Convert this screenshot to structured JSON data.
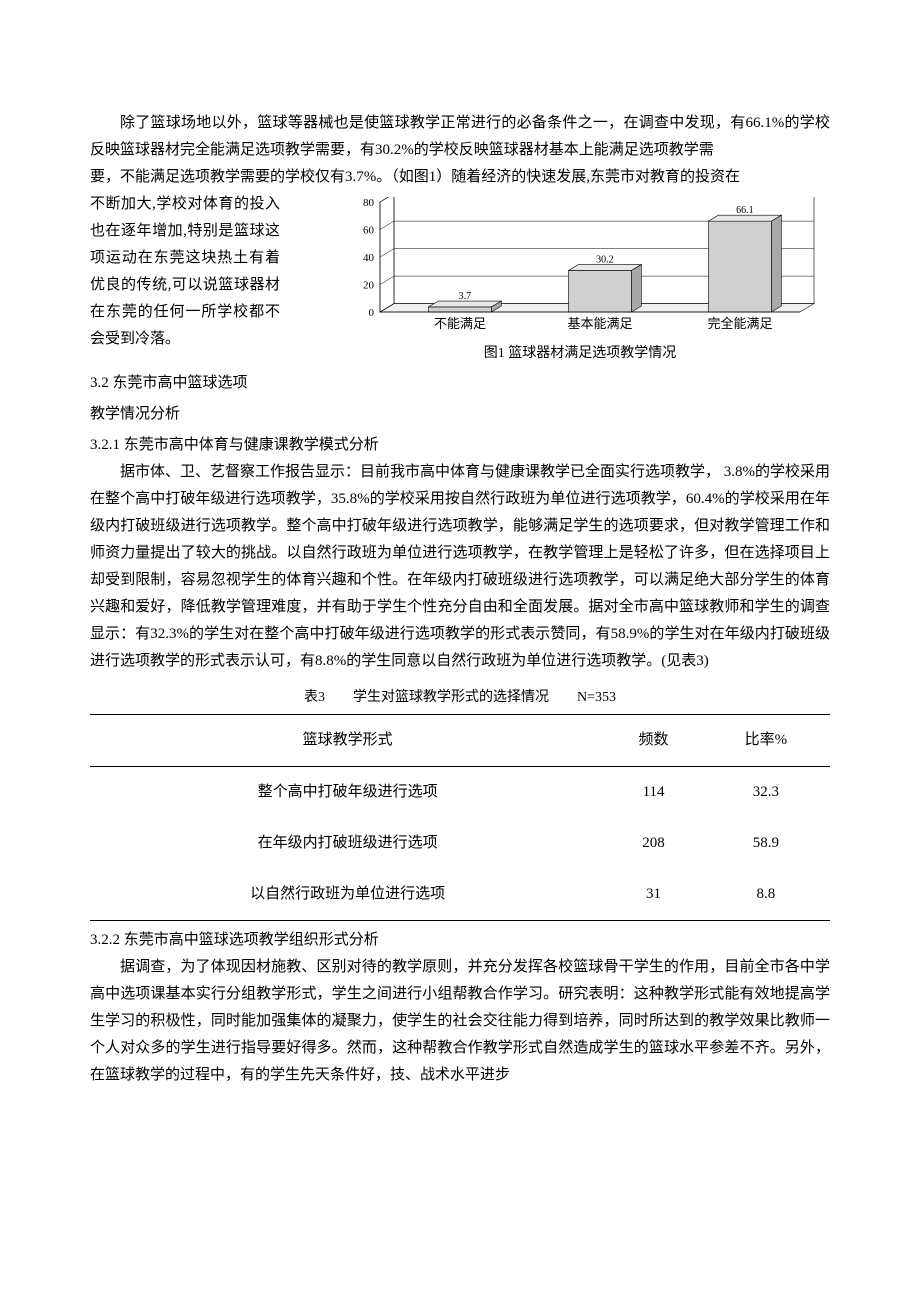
{
  "para1": "除了篮球场地以外，篮球等器械也是使篮球教学正常进行的必备条件之一，在调查中发现，有66.1%的学校反映篮球器材完全能满足选项教学需要，有30.2%的学校反映篮球器材基本上能满足选项教学需",
  "para2": "要，不能满足选项教学需要的学校仅有3.7%。（如图1）随着经济的快速发展,东莞市对教育的投资在",
  "left_text": "不断加大,学校对体育的投入也在逐年增加,特别是篮球这项运动在东莞这块热土有着优良的传统,可以说篮球器材在东莞的任何一所学校都不会受到冷落。",
  "chart": {
    "type": "bar",
    "categories": [
      "不能满足",
      "基本能满足",
      "完全能满足"
    ],
    "values": [
      3.7,
      30.2,
      66.1
    ],
    "value_labels": [
      "3.7",
      "30.2",
      "66.1"
    ],
    "ylim": [
      0,
      80
    ],
    "yticks": [
      0,
      20,
      40,
      60,
      80
    ],
    "bar_fill": "#d0d0d0",
    "bar_top": "#e8e8e8",
    "bar_side": "#a8a8a8",
    "grid_color": "#000000",
    "floor_color": "#f0f0f0",
    "label_fontsize": 11,
    "value_fontsize": 10
  },
  "chart_caption": "图1 篮球器材满足选项教学情况",
  "sec_3_2": "3.2 东莞市高中篮球选项",
  "sec_3_2b": "教学情况分析",
  "sec_3_2_1": "3.2.1 东莞市高中体育与健康课教学模式分析",
  "para3": "据市体、卫、艺督察工作报告显示：目前我市高中体育与健康课教学已全面实行选项教学， 3.8%的学校采用在整个高中打破年级进行选项教学，35.8%的学校采用按自然行政班为单位进行选项教学，60.4%的学校采用在年级内打破班级进行选项教学。整个高中打破年级进行选项教学，能够满足学生的选项要求，但对教学管理工作和师资力量提出了较大的挑战。以自然行政班为单位进行选项教学，在教学管理上是轻松了许多，但在选择项目上却受到限制，容易忽视学生的体育兴趣和个性。在年级内打破班级进行选项教学，可以满足绝大部分学生的体育兴趣和爱好，降低教学管理难度，并有助于学生个性充分自由和全面发展。据对全市高中篮球教师和学生的调查显示：有32.3%的学生对在整个高中打破年级进行选项教学的形式表示赞同，有58.9%的学生对在年级内打破班级进行选项教学的形式表示认可，有8.8%的学生同意以自然行政班为单位进行选项教学。(见表3)",
  "table_caption": "表3　　学生对篮球教学形式的选择情况　　N=353",
  "table": {
    "headers": [
      "篮球教学形式",
      "频数",
      "比率%"
    ],
    "rows": [
      [
        "整个高中打破年级进行选项",
        "114",
        "32.3"
      ],
      [
        "在年级内打破班级进行选项",
        "208",
        "58.9"
      ],
      [
        "以自然行政班为单位进行选项",
        "31",
        "8.8"
      ]
    ]
  },
  "sec_3_2_2": "3.2.2 东莞市高中篮球选项教学组织形式分析",
  "para4": "据调查，为了体现因材施教、区别对待的教学原则，并充分发挥各校篮球骨干学生的作用，目前全市各中学高中选项课基本实行分组教学形式，学生之间进行小组帮教合作学习。研究表明：这种教学形式能有效地提高学生学习的积极性，同时能加强集体的凝聚力，使学生的社会交往能力得到培养，同时所达到的教学效果比教师一个人对众多的学生进行指导要好得多。然而，这种帮教合作教学形式自然造成学生的篮球水平参差不齐。另外，在篮球教学的过程中，有的学生先天条件好，技、战术水平进步",
  "dash": "-"
}
